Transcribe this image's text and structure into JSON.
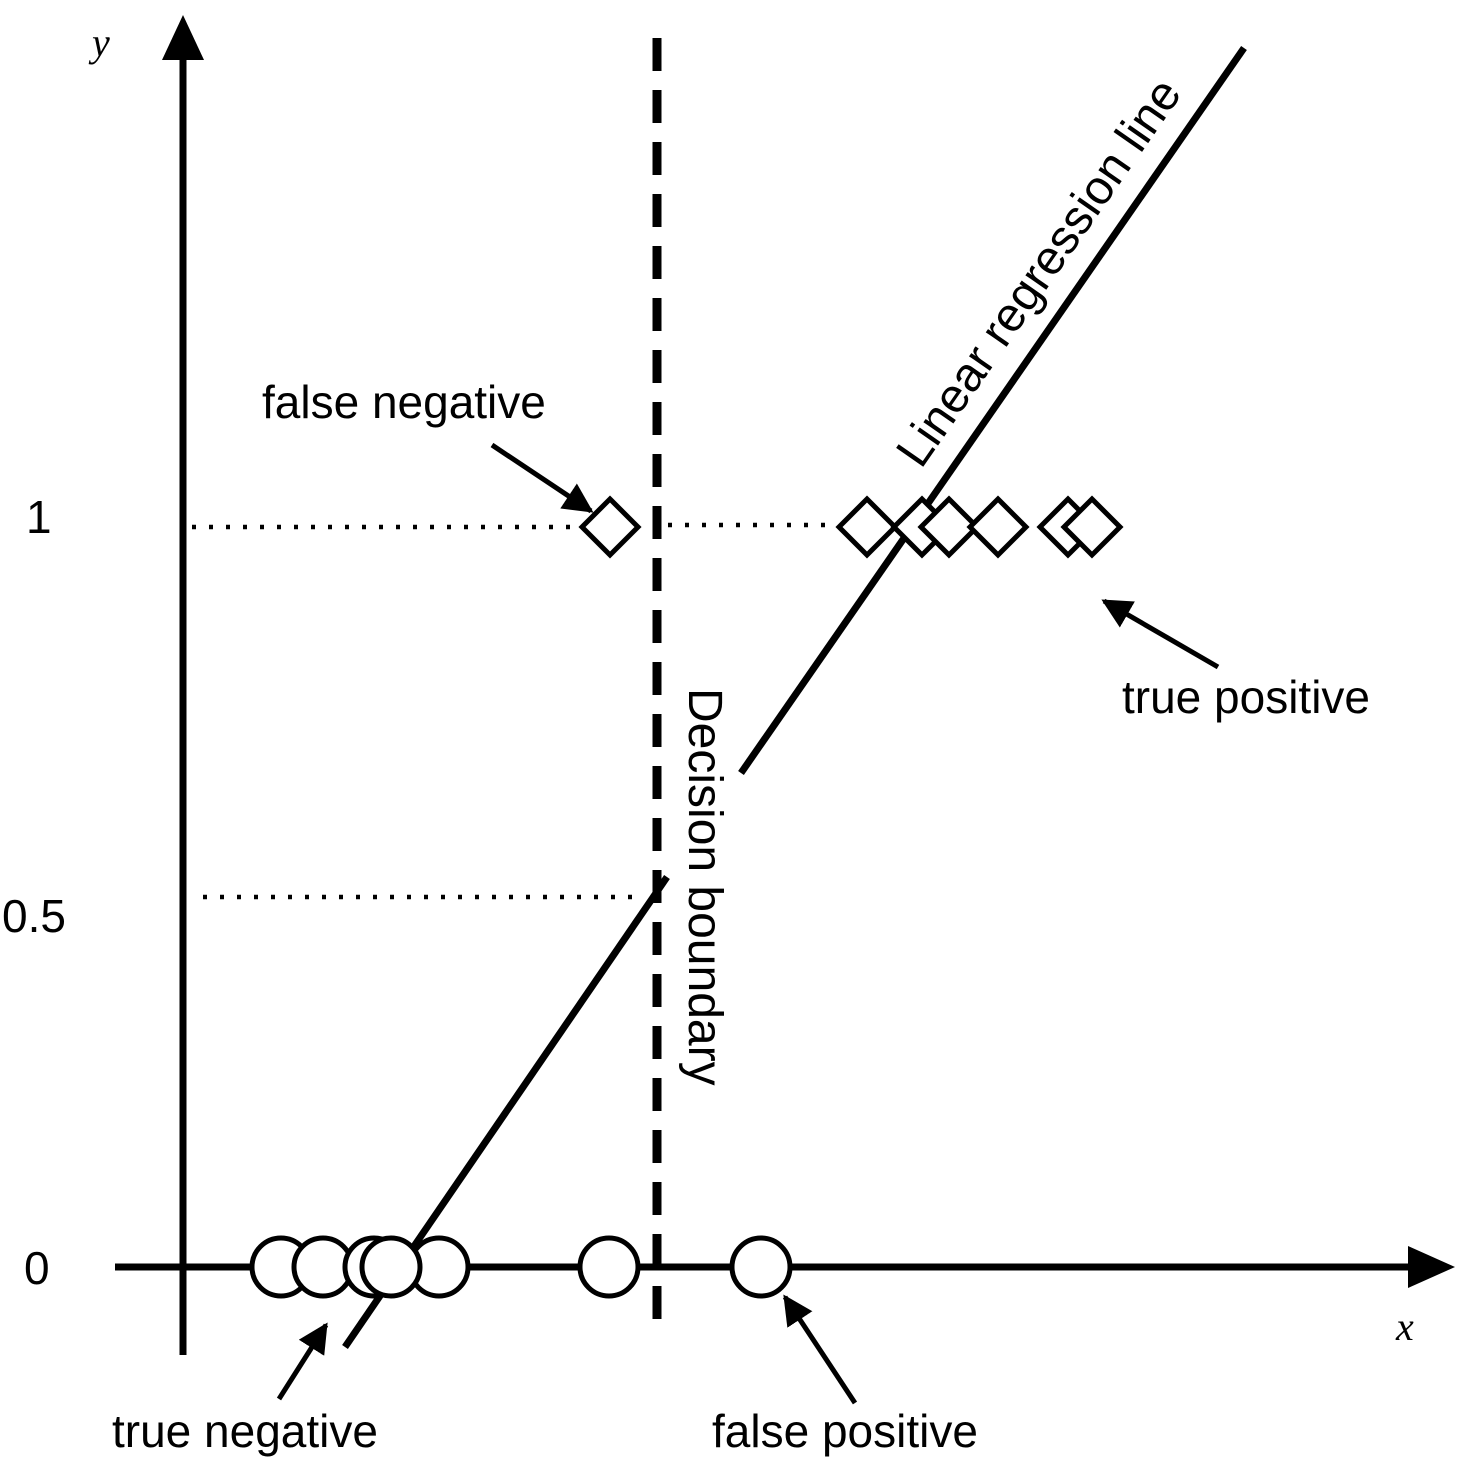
{
  "axes": {
    "x_label": "x",
    "y_label": "y",
    "y_ticks": [
      "0",
      "0.5",
      "1"
    ]
  },
  "lines": {
    "regression_label": "Linear regression line",
    "boundary_label": "Decision boundary"
  },
  "annotations": {
    "false_negative": "false negative",
    "true_positive": "true positive",
    "true_negative": "true negative",
    "false_positive": "false positive"
  },
  "colors": {
    "ink": "#000000",
    "background": "#ffffff"
  },
  "markers": {
    "class_0_shape": "circle",
    "class_1_shape": "diamond",
    "class_0_count": 7,
    "class_1_count": 7
  }
}
